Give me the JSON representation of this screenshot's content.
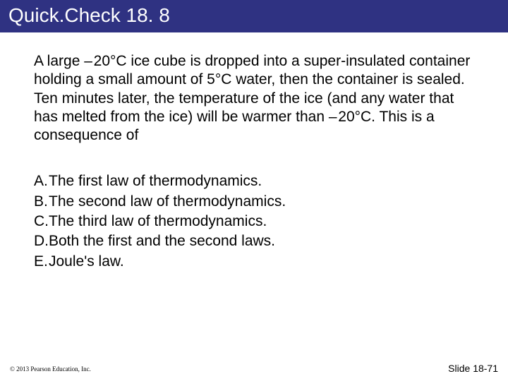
{
  "title_bar": {
    "text": "Quick.Check 18. 8",
    "background_color": "#2f3282",
    "text_color": "#ffffff",
    "font_size": 28
  },
  "question": {
    "text": "A large – 20°C ice cube is dropped into a super-insulated container holding a small amount of 5°C water, then the container is sealed. Ten minutes later, the temperature of the ice (and any water that has melted from the ice) will be warmer than – 20°C. This is a consequence of",
    "font_size": 21,
    "color": "#000000"
  },
  "options": [
    {
      "letter": "A.",
      "text": "The first law of thermodynamics."
    },
    {
      "letter": "B.",
      "text": "The second law of thermodynamics."
    },
    {
      "letter": "C.",
      "text": "The third law of thermodynamics."
    },
    {
      "letter": "D.",
      "text": "Both the first and the second laws."
    },
    {
      "letter": "E.",
      "text": "Joule's law."
    }
  ],
  "footer": {
    "copyright": "© 2013 Pearson Education, Inc.",
    "slide": "Slide 18-71",
    "color": "#000000"
  },
  "colors": {
    "page_background": "#ffffff",
    "body_text": "#000000"
  }
}
